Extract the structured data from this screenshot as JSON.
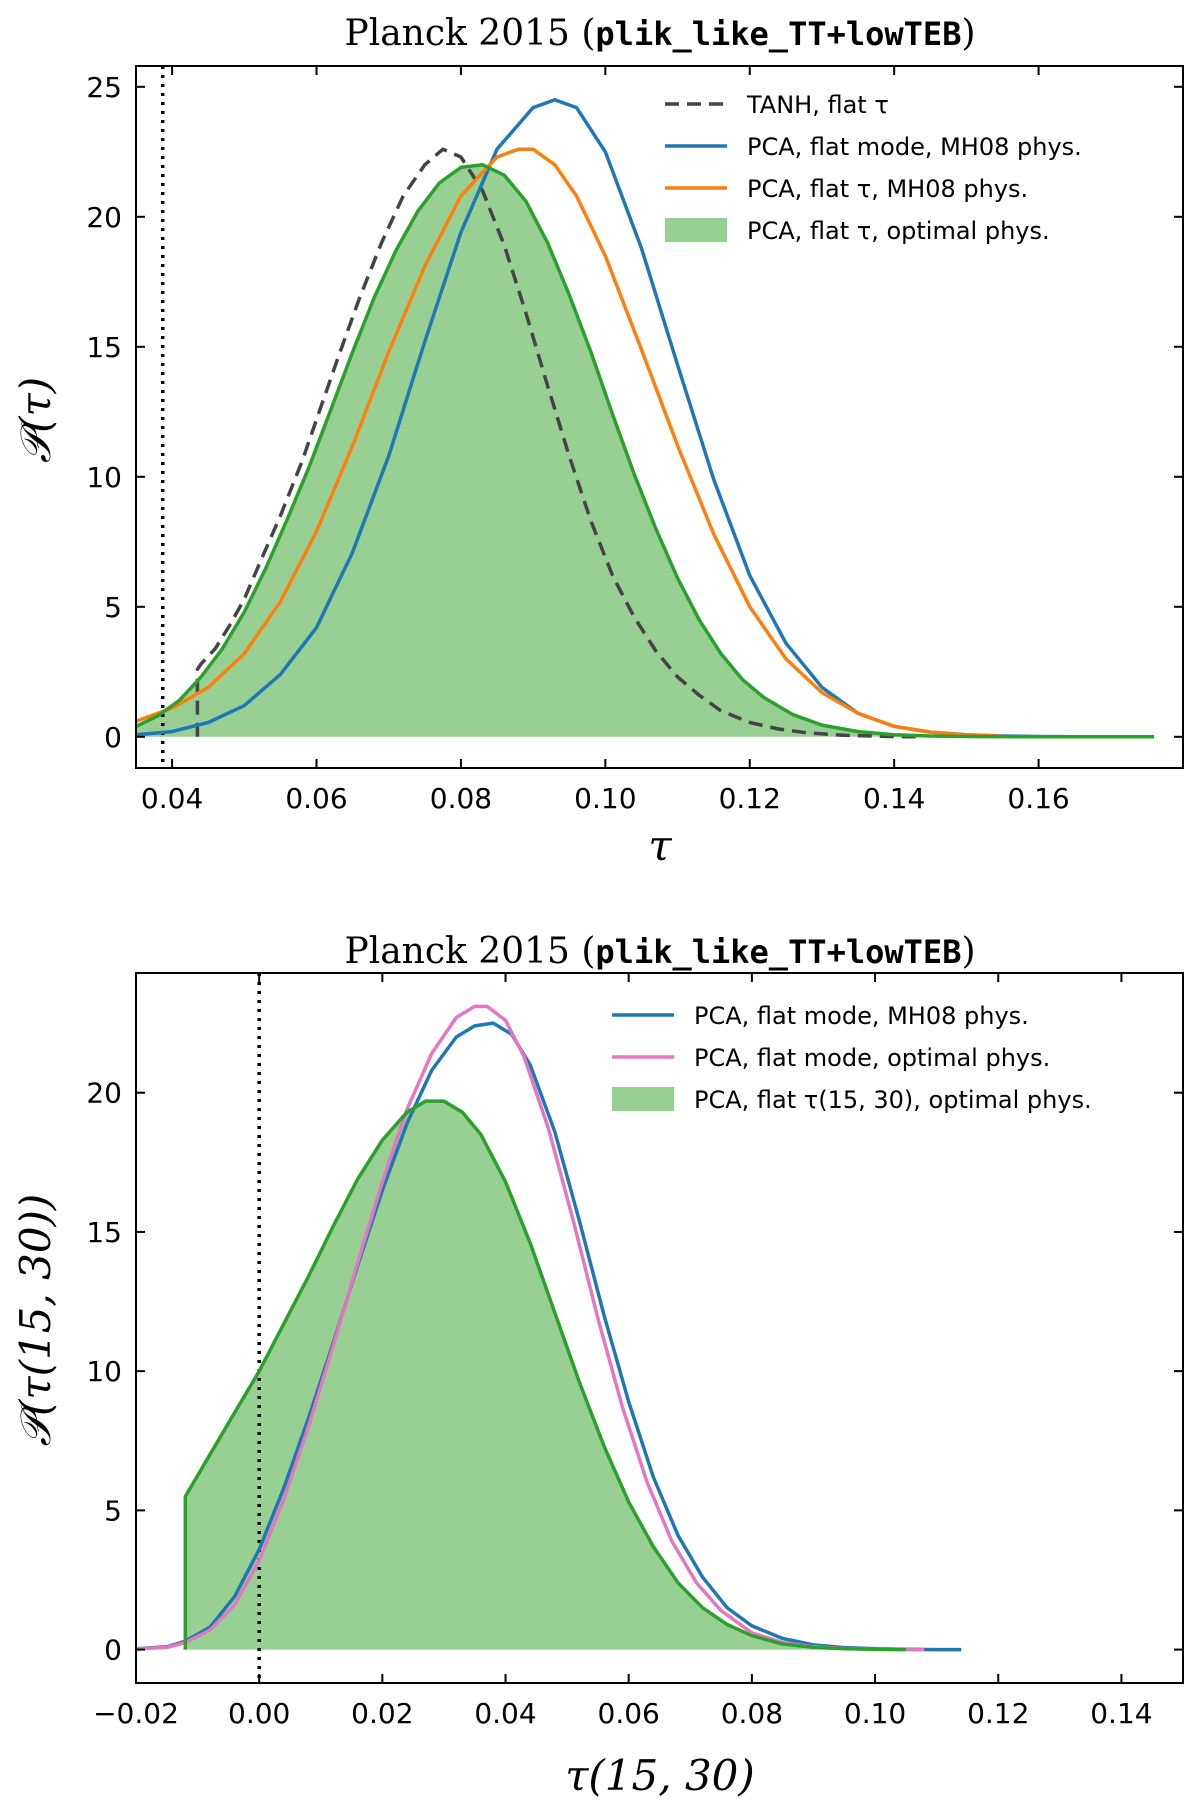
{
  "chart_data": [
    {
      "type": "line",
      "title_prefix": "Planck 2015 (",
      "title_code": "plik_like_TT+lowTEB",
      "title_suffix": ")",
      "xlabel": "τ",
      "ylabel": "𝒫(τ)",
      "xlim": [
        0.035,
        0.18
      ],
      "ylim": [
        -1.2,
        25.8
      ],
      "xticks": [
        0.04,
        0.06,
        0.08,
        0.1,
        0.12,
        0.14,
        0.16
      ],
      "xtick_labels": [
        "0.04",
        "0.06",
        "0.08",
        "0.10",
        "0.12",
        "0.14",
        "0.16"
      ],
      "yticks": [
        0,
        5,
        10,
        15,
        20,
        25
      ],
      "ytick_labels": [
        "0",
        "5",
        "10",
        "15",
        "20",
        "25"
      ],
      "vline_x": 0.0387,
      "legend_position": "top-right",
      "series": [
        {
          "name": "TANH, flat τ",
          "color": "#444444",
          "style": "dashed",
          "fill": false,
          "x": [
            0.0435,
            0.0435,
            0.044,
            0.046,
            0.048,
            0.05,
            0.052,
            0.055,
            0.058,
            0.06,
            0.063,
            0.066,
            0.069,
            0.072,
            0.075,
            0.0775,
            0.08,
            0.083,
            0.086,
            0.089,
            0.092,
            0.095,
            0.098,
            0.101,
            0.104,
            0.107,
            0.11,
            0.113,
            0.116,
            0.12,
            0.124,
            0.128,
            0.133,
            0.138,
            0.143
          ],
          "values": [
            0.0,
            2.6,
            2.8,
            3.4,
            4.3,
            5.3,
            6.6,
            8.5,
            10.6,
            12.2,
            14.6,
            16.9,
            19.0,
            20.8,
            22.0,
            22.6,
            22.3,
            21.0,
            18.9,
            16.3,
            13.5,
            10.8,
            8.3,
            6.2,
            4.6,
            3.3,
            2.3,
            1.6,
            1.0,
            0.55,
            0.3,
            0.15,
            0.06,
            0.02,
            0.0
          ]
        },
        {
          "name": "PCA, flat mode, MH08 phys.",
          "color": "#1f77b4",
          "style": "solid",
          "fill": false,
          "x": [
            0.035,
            0.04,
            0.045,
            0.05,
            0.055,
            0.06,
            0.065,
            0.07,
            0.075,
            0.08,
            0.085,
            0.09,
            0.093,
            0.096,
            0.1,
            0.105,
            0.11,
            0.115,
            0.12,
            0.125,
            0.13,
            0.135,
            0.14,
            0.145,
            0.15,
            0.155,
            0.16,
            0.165,
            0.17,
            0.176
          ],
          "values": [
            0.08,
            0.2,
            0.55,
            1.2,
            2.4,
            4.2,
            7.1,
            10.8,
            15.2,
            19.4,
            22.6,
            24.2,
            24.5,
            24.2,
            22.5,
            18.8,
            14.3,
            9.9,
            6.2,
            3.6,
            1.9,
            0.9,
            0.4,
            0.18,
            0.08,
            0.03,
            0.01,
            0.0,
            0.0,
            0.0
          ]
        },
        {
          "name": "PCA, flat τ, MH08 phys.",
          "color": "#ff7f0e",
          "style": "solid",
          "fill": false,
          "x": [
            0.035,
            0.04,
            0.045,
            0.05,
            0.055,
            0.06,
            0.065,
            0.07,
            0.075,
            0.08,
            0.085,
            0.088,
            0.09,
            0.093,
            0.096,
            0.1,
            0.105,
            0.11,
            0.115,
            0.12,
            0.125,
            0.13,
            0.135,
            0.14,
            0.145,
            0.15,
            0.155
          ],
          "values": [
            0.6,
            1.1,
            1.9,
            3.2,
            5.2,
            7.9,
            11.2,
            14.8,
            18.1,
            20.8,
            22.3,
            22.6,
            22.6,
            22.0,
            20.8,
            18.5,
            14.9,
            11.2,
            7.8,
            5.0,
            3.0,
            1.7,
            0.9,
            0.4,
            0.18,
            0.07,
            0.02
          ]
        },
        {
          "name": "PCA, flat τ, optimal phys.",
          "color": "#2ca02c",
          "style": "solid",
          "fill": true,
          "fill_color": "#98d094",
          "x": [
            0.035,
            0.038,
            0.041,
            0.044,
            0.047,
            0.05,
            0.053,
            0.056,
            0.059,
            0.062,
            0.065,
            0.068,
            0.071,
            0.074,
            0.077,
            0.08,
            0.083,
            0.086,
            0.089,
            0.092,
            0.095,
            0.098,
            0.101,
            0.104,
            0.107,
            0.11,
            0.113,
            0.116,
            0.119,
            0.122,
            0.126,
            0.13,
            0.135,
            0.14,
            0.145,
            0.15,
            0.16,
            0.17,
            0.176
          ],
          "values": [
            0.4,
            0.8,
            1.4,
            2.3,
            3.4,
            4.8,
            6.5,
            8.4,
            10.4,
            12.6,
            14.8,
            16.9,
            18.7,
            20.2,
            21.3,
            21.9,
            22.0,
            21.6,
            20.6,
            19.0,
            17.0,
            14.8,
            12.4,
            10.1,
            8.0,
            6.1,
            4.5,
            3.2,
            2.2,
            1.5,
            0.85,
            0.45,
            0.2,
            0.08,
            0.03,
            0.01,
            0.0,
            0.0,
            0.0
          ]
        }
      ]
    },
    {
      "type": "line",
      "title_prefix": "Planck 2015 (",
      "title_code": "plik_like_TT+lowTEB",
      "title_suffix": ")",
      "xlabel": "τ(15, 30)",
      "ylabel": "𝒫(τ(15, 30))",
      "xlim": [
        -0.02,
        0.15
      ],
      "ylim": [
        -1.2,
        24.3
      ],
      "xticks": [
        -0.02,
        0.0,
        0.02,
        0.04,
        0.06,
        0.08,
        0.1,
        0.12,
        0.14
      ],
      "xtick_labels": [
        "−0.02",
        "0.00",
        "0.02",
        "0.04",
        "0.06",
        "0.08",
        "0.10",
        "0.12",
        "0.14"
      ],
      "yticks": [
        0,
        5,
        10,
        15,
        20
      ],
      "ytick_labels": [
        "0",
        "5",
        "10",
        "15",
        "20"
      ],
      "vline_x": 0.0,
      "legend_position": "top-right",
      "series": [
        {
          "name": "PCA, flat mode, MH08 phys.",
          "color": "#1f77b4",
          "style": "solid",
          "fill": false,
          "x": [
            -0.02,
            -0.015,
            -0.012,
            -0.008,
            -0.004,
            0.0,
            0.004,
            0.008,
            0.012,
            0.016,
            0.02,
            0.024,
            0.028,
            0.032,
            0.035,
            0.038,
            0.041,
            0.044,
            0.048,
            0.052,
            0.056,
            0.06,
            0.064,
            0.068,
            0.072,
            0.076,
            0.08,
            0.085,
            0.09,
            0.095,
            0.1,
            0.105,
            0.11,
            0.114
          ],
          "values": [
            0.03,
            0.1,
            0.3,
            0.8,
            1.9,
            3.6,
            5.8,
            8.3,
            11.0,
            13.8,
            16.5,
            18.9,
            20.8,
            22.0,
            22.4,
            22.5,
            22.1,
            21.0,
            18.6,
            15.4,
            12.0,
            8.9,
            6.2,
            4.1,
            2.6,
            1.5,
            0.85,
            0.4,
            0.17,
            0.07,
            0.03,
            0.01,
            0.0,
            0.0
          ]
        },
        {
          "name": "PCA, flat mode, optimal phys.",
          "color": "#e377c2",
          "style": "solid",
          "fill": false,
          "x": [
            -0.02,
            -0.015,
            -0.012,
            -0.008,
            -0.004,
            0.0,
            0.004,
            0.008,
            0.012,
            0.016,
            0.02,
            0.024,
            0.028,
            0.032,
            0.035,
            0.037,
            0.04,
            0.043,
            0.047,
            0.051,
            0.055,
            0.059,
            0.063,
            0.067,
            0.071,
            0.075,
            0.08,
            0.085,
            0.09,
            0.095,
            0.1,
            0.105,
            0.108
          ],
          "values": [
            0.02,
            0.08,
            0.25,
            0.7,
            1.6,
            3.2,
            5.4,
            8.0,
            10.9,
            13.9,
            16.8,
            19.4,
            21.4,
            22.7,
            23.1,
            23.1,
            22.6,
            21.3,
            18.7,
            15.4,
            11.9,
            8.7,
            6.0,
            3.9,
            2.4,
            1.4,
            0.6,
            0.25,
            0.1,
            0.04,
            0.01,
            0.0,
            0.0
          ]
        },
        {
          "name": "PCA, flat τ(15, 30), optimal phys.",
          "color": "#2ca02c",
          "style": "solid",
          "fill": true,
          "fill_color": "#98d094",
          "x": [
            -0.012,
            -0.012,
            -0.008,
            -0.004,
            0.0,
            0.004,
            0.008,
            0.012,
            0.016,
            0.02,
            0.024,
            0.027,
            0.03,
            0.033,
            0.036,
            0.04,
            0.044,
            0.048,
            0.052,
            0.056,
            0.06,
            0.064,
            0.068,
            0.072,
            0.076,
            0.08,
            0.085,
            0.09,
            0.095,
            0.1,
            0.105
          ],
          "values": [
            0.0,
            5.5,
            7.0,
            8.5,
            10.0,
            11.7,
            13.4,
            15.2,
            16.9,
            18.3,
            19.3,
            19.7,
            19.7,
            19.3,
            18.5,
            16.8,
            14.6,
            12.1,
            9.6,
            7.3,
            5.3,
            3.7,
            2.4,
            1.5,
            0.9,
            0.5,
            0.2,
            0.08,
            0.03,
            0.01,
            0.0
          ]
        }
      ]
    }
  ]
}
